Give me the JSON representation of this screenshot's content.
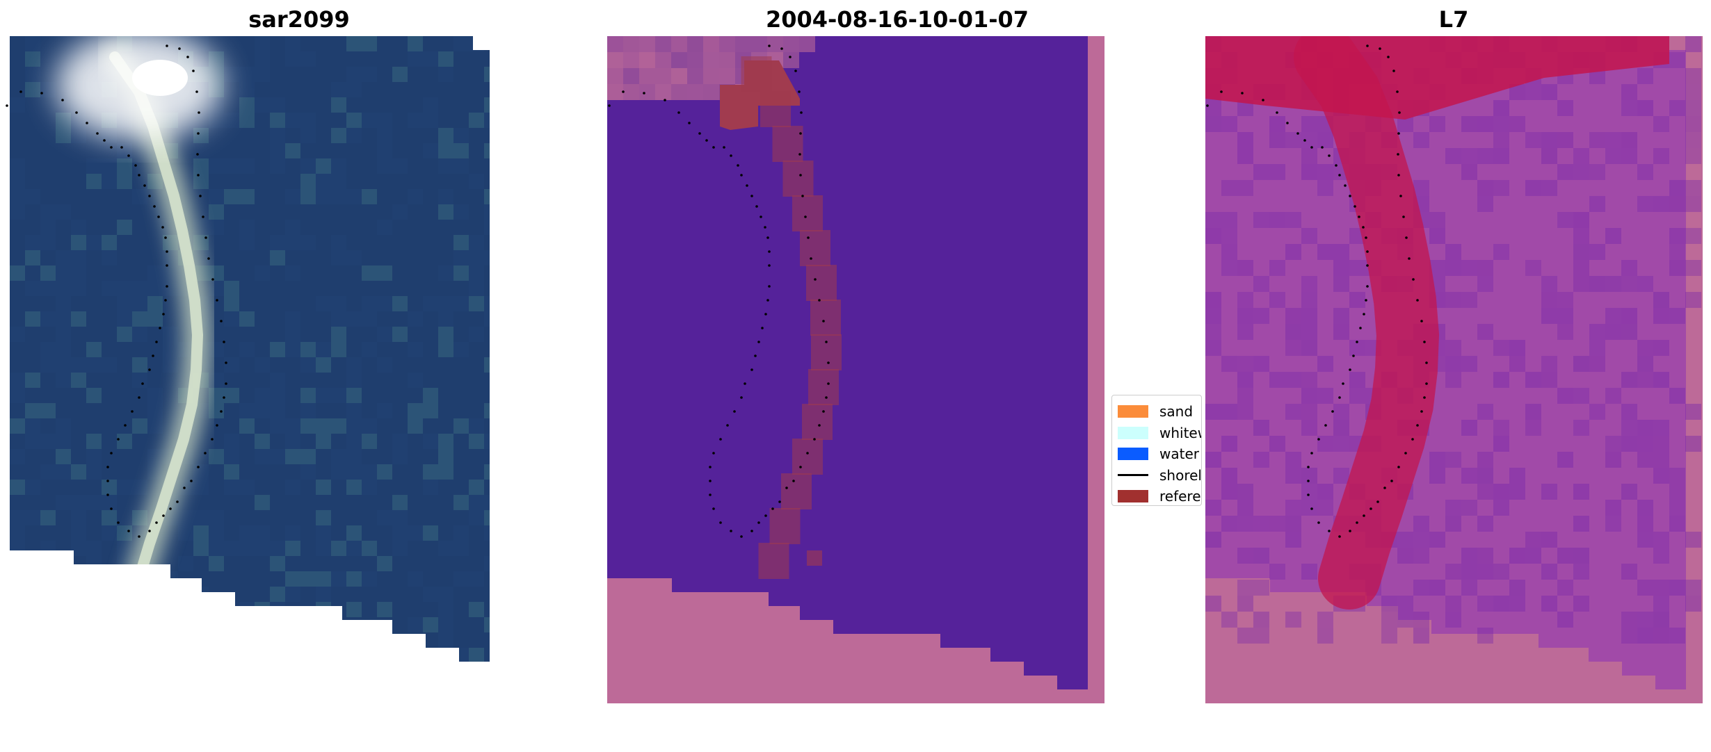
{
  "panels": [
    {
      "title": "sar2099"
    },
    {
      "title": "2004-08-16-10-01-07"
    },
    {
      "title": "L7"
    }
  ],
  "legend": {
    "items": [
      {
        "label": "sand",
        "color": "#fb8c3a"
      },
      {
        "label": "whitewater",
        "color": "#ccfffd"
      },
      {
        "label": "water",
        "color": "#0a5cff"
      },
      {
        "label": "shoreline",
        "color": "#000000"
      },
      {
        "label": "reference shoreline",
        "color": "#a1302f"
      }
    ]
  },
  "colors": {
    "rgb_water": "#1f3e6e",
    "classified_water": "#55229a",
    "nodata_overlay": "#bd6a98",
    "reference_region": "#a13b4f",
    "index_background": "#a14aa8",
    "index_high": "#c3154e",
    "shoreline": "#000000"
  }
}
